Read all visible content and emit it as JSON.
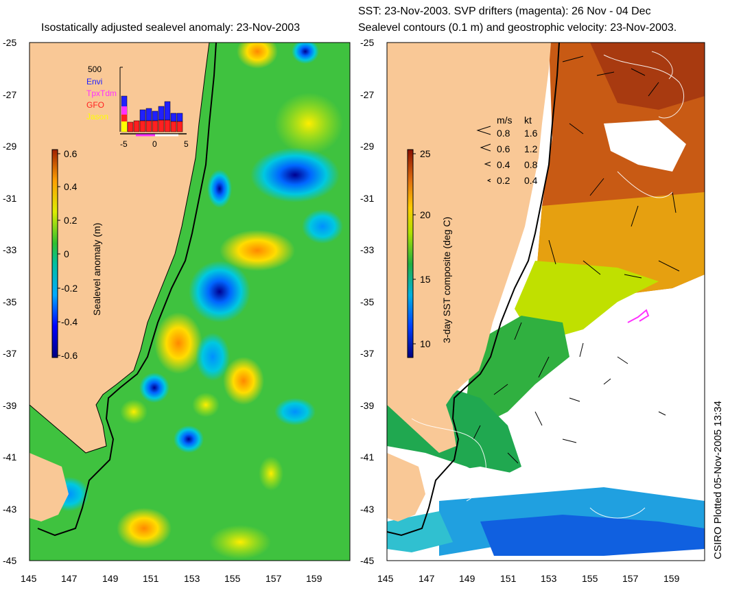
{
  "left_panel": {
    "title": "Isostatically adjusted sealevel anomaly: 23-Nov-2003",
    "y_ticks": [
      "-25",
      "-27",
      "-29",
      "-31",
      "-33",
      "-35",
      "-37",
      "-39",
      "-41",
      "-43",
      "-45"
    ],
    "x_ticks": [
      "145",
      "147",
      "149",
      "151",
      "153",
      "155",
      "157",
      "159"
    ],
    "colorbar": {
      "label": "Sealevel anomaly (m)",
      "ticks": [
        "0.6",
        "0.4",
        "0.2",
        "0",
        "-0.2",
        "-0.4",
        "-0.6"
      ]
    },
    "histogram": {
      "y_max_label": "500",
      "legend": [
        "Envi",
        "TpxTdm",
        "GFO",
        "Jason"
      ],
      "legend_colors": [
        "#2020ff",
        "#ff30ff",
        "#ff2020",
        "#ffff00"
      ],
      "x_ticks": [
        "-5",
        "0",
        "5"
      ]
    }
  },
  "right_panel": {
    "title_line1": "SST: 23-Nov-2003. SVP drifters (magenta): 26 Nov - 04 Dec",
    "title_line2": "Sealevel contours (0.1 m) and geostrophic velocity: 23-Nov-2003.",
    "y_ticks": [
      "-25",
      "-27",
      "-29",
      "-31",
      "-33",
      "-35",
      "-37",
      "-39",
      "-41",
      "-43",
      "-45"
    ],
    "x_ticks": [
      "145",
      "147",
      "149",
      "151",
      "153",
      "155",
      "157",
      "159"
    ],
    "colorbar": {
      "label": "3-day SST composite (deg C)",
      "ticks": [
        "25",
        "20",
        "15",
        "10"
      ]
    },
    "velocity_legend": {
      "header_ms": "m/s",
      "header_kt": "kt",
      "rows": [
        {
          "ms": "0.8",
          "kt": "1.6"
        },
        {
          "ms": "0.6",
          "kt": "1.2"
        },
        {
          "ms": "0.4",
          "kt": "0.8"
        },
        {
          "ms": "0.2",
          "kt": "0.4"
        }
      ]
    }
  },
  "credit": "CSIRO Plotted 05-Nov-2005 13:34",
  "colors": {
    "land": "#f9c896",
    "ocean_sla_base": "#3fc23f",
    "sst_warm": "#c85a14",
    "coast": "#000000"
  }
}
